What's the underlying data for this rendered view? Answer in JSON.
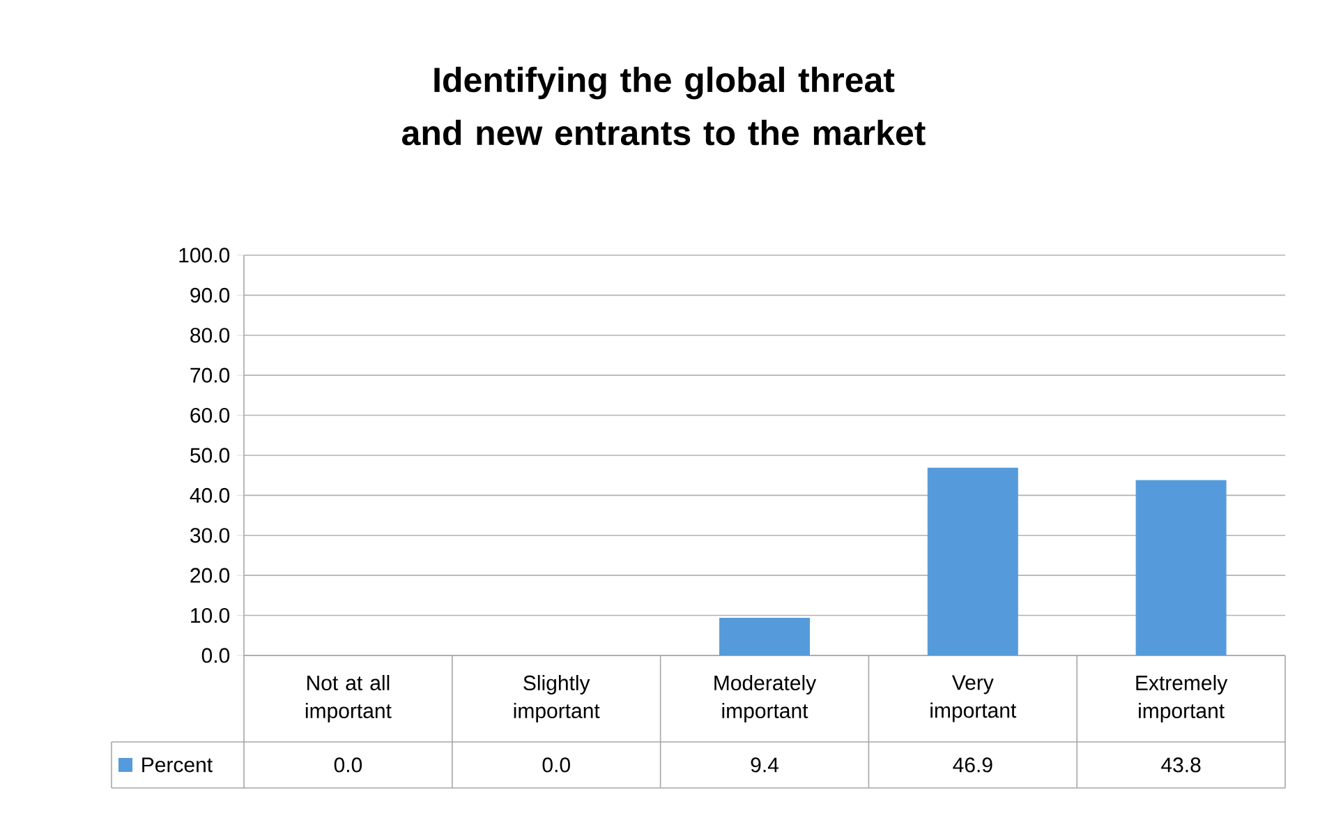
{
  "chart_data": {
    "type": "bar",
    "title": "Identifying the global threat and new entrants to the market",
    "categories": [
      "Not at all important",
      "Slightly important",
      "Moderately important",
      "Very important",
      "Extremely important"
    ],
    "series": [
      {
        "name": "Percent",
        "color": "#559bdc",
        "values": [
          0.0,
          0.0,
          9.4,
          46.9,
          43.8
        ],
        "value_labels": [
          "0.0",
          "0.0",
          "9.4",
          "46.9",
          "43.8"
        ]
      }
    ],
    "ylim": [
      0,
      100
    ],
    "yticks": [
      {
        "value": 0,
        "label": "0.0"
      },
      {
        "value": 10,
        "label": "10.0"
      },
      {
        "value": 20,
        "label": "20.0"
      },
      {
        "value": 30,
        "label": "30.0"
      },
      {
        "value": 40,
        "label": "40.0"
      },
      {
        "value": 50,
        "label": "50.0"
      },
      {
        "value": 60,
        "label": "60.0"
      },
      {
        "value": 70,
        "label": "70.0"
      },
      {
        "value": 80,
        "label": "80.0"
      },
      {
        "value": 90,
        "label": "90.0"
      },
      {
        "value": 100,
        "label": "100.0"
      }
    ],
    "grid": "y",
    "legend": "bottom left"
  }
}
